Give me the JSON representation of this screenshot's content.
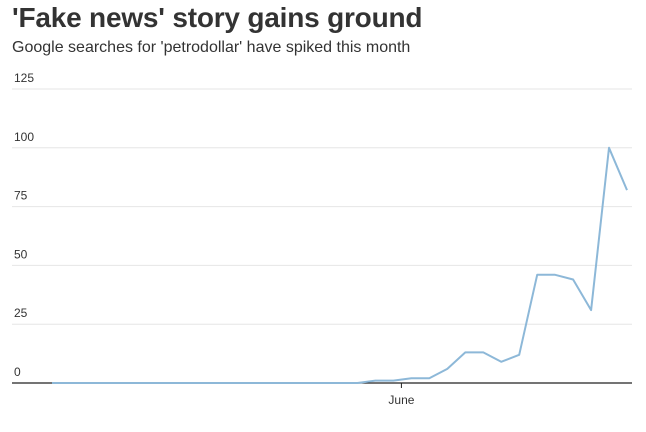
{
  "title": "'Fake news' story gains ground",
  "subtitle": "Google searches for 'petrodollar' have spiked this month",
  "chart_data": {
    "type": "line",
    "title": "'Fake news' story gains ground",
    "subtitle": "Google searches for 'petrodollar' have spiked this month",
    "xlabel": "",
    "ylabel": "",
    "ylim": [
      0,
      125
    ],
    "yticks": [
      "0",
      "25",
      "50",
      "75",
      "100",
      "125"
    ],
    "xticks": [
      {
        "label": "June",
        "index": 19
      }
    ],
    "grid": true,
    "legend": "none",
    "series_color": "#8db8d8",
    "series": [
      {
        "values": [
          0,
          0,
          0,
          0,
          0,
          0,
          0,
          0,
          0,
          0,
          0,
          0,
          0,
          0,
          0,
          0,
          0,
          0,
          1,
          1,
          2,
          2,
          6,
          13,
          13,
          9,
          12,
          46,
          46,
          44,
          31,
          100,
          82
        ]
      }
    ]
  }
}
